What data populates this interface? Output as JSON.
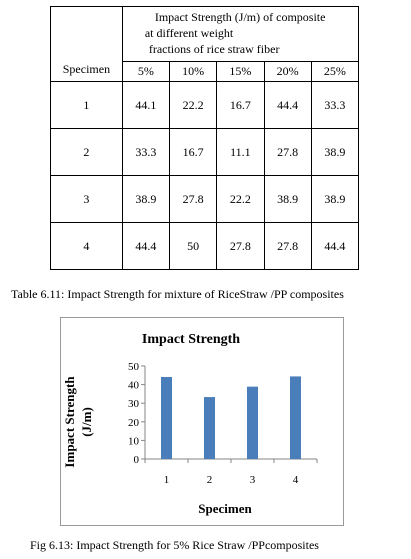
{
  "table": {
    "specimen_header": "Specimen",
    "title_lines": [
      "Impact Strength (J/m) of composite",
      "at different weight",
      "fractions of rice straw fiber"
    ],
    "percent_headers": [
      "5%",
      "10%",
      "15%",
      "20%",
      "25%"
    ],
    "rows": [
      {
        "specimen": "1",
        "values": [
          "44.1",
          "22.2",
          "16.7",
          "44.4",
          "33.3"
        ]
      },
      {
        "specimen": "2",
        "values": [
          "33.3",
          "16.7",
          "11.1",
          "27.8",
          "38.9"
        ]
      },
      {
        "specimen": "3",
        "values": [
          "38.9",
          "27.8",
          "22.2",
          "38.9",
          "38.9"
        ]
      },
      {
        "specimen": "4",
        "values": [
          "44.4",
          "50",
          "27.8",
          "27.8",
          "44.4"
        ]
      }
    ]
  },
  "table_caption": "Table 6.11:  Impact Strength for mixture of RiceStraw /PP composites",
  "chart_data": {
    "type": "bar",
    "title": "Impact Strength",
    "xlabel": "Specimen",
    "ylabel": "Impact Strength (J/m)",
    "ylabel_lines": [
      "Impact Strength",
      "(J/m)"
    ],
    "categories": [
      "1",
      "2",
      "3",
      "4"
    ],
    "values": [
      44.1,
      33.3,
      38.9,
      44.4
    ],
    "ylim": [
      0,
      50
    ],
    "yticks": [
      "0",
      "10",
      "20",
      "30",
      "40",
      "50"
    ],
    "bar_color": "#4a7ebb",
    "grid": false,
    "legend": "none"
  },
  "chart_caption": "Fig 6.13:  Impact Strength for 5% Rice Straw /PPcomposites"
}
